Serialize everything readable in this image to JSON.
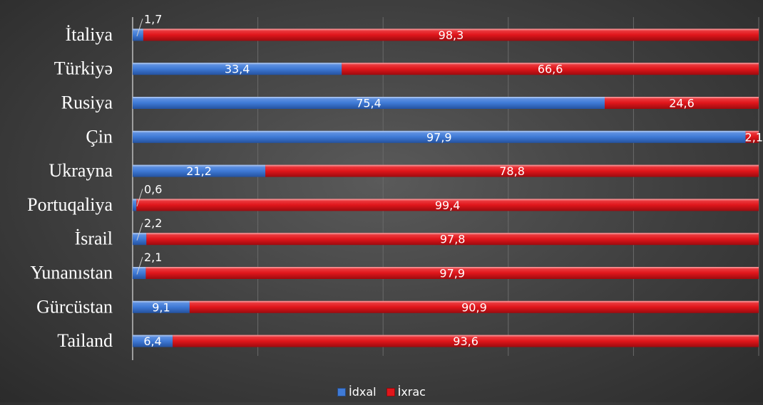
{
  "chart_data": {
    "type": "bar",
    "orientation": "horizontal",
    "stacked": true,
    "categories": [
      "İtaliya",
      "Türkiyə",
      "Rusiya",
      "Çin",
      "Ukrayna",
      "Portuqaliya",
      "İsrail",
      "Yunanıstan",
      "Gürcüstan",
      "Tailand"
    ],
    "series": [
      {
        "name": "İdxal",
        "color": "#3f7ad6",
        "values": [
          1.7,
          33.4,
          75.4,
          97.9,
          21.2,
          0.6,
          2.2,
          2.1,
          9.1,
          6.4
        ],
        "labels": [
          "1,7",
          "33,4",
          "75,4",
          "97,9",
          "21,2",
          "0,6",
          "2,2",
          "2,1",
          "9,1",
          "6,4"
        ]
      },
      {
        "name": "İxrac",
        "color": "#e0161b",
        "values": [
          98.3,
          66.6,
          24.6,
          2.1,
          78.8,
          99.4,
          97.8,
          97.9,
          90.9,
          93.6
        ],
        "labels": [
          "98,3",
          "66,6",
          "24,6",
          "2,1",
          "78,8",
          "99,4",
          "97,8",
          "97,9",
          "90,9",
          "93,6"
        ]
      }
    ],
    "xlim": [
      0,
      100
    ],
    "grid": true,
    "legend_position": "bottom"
  }
}
